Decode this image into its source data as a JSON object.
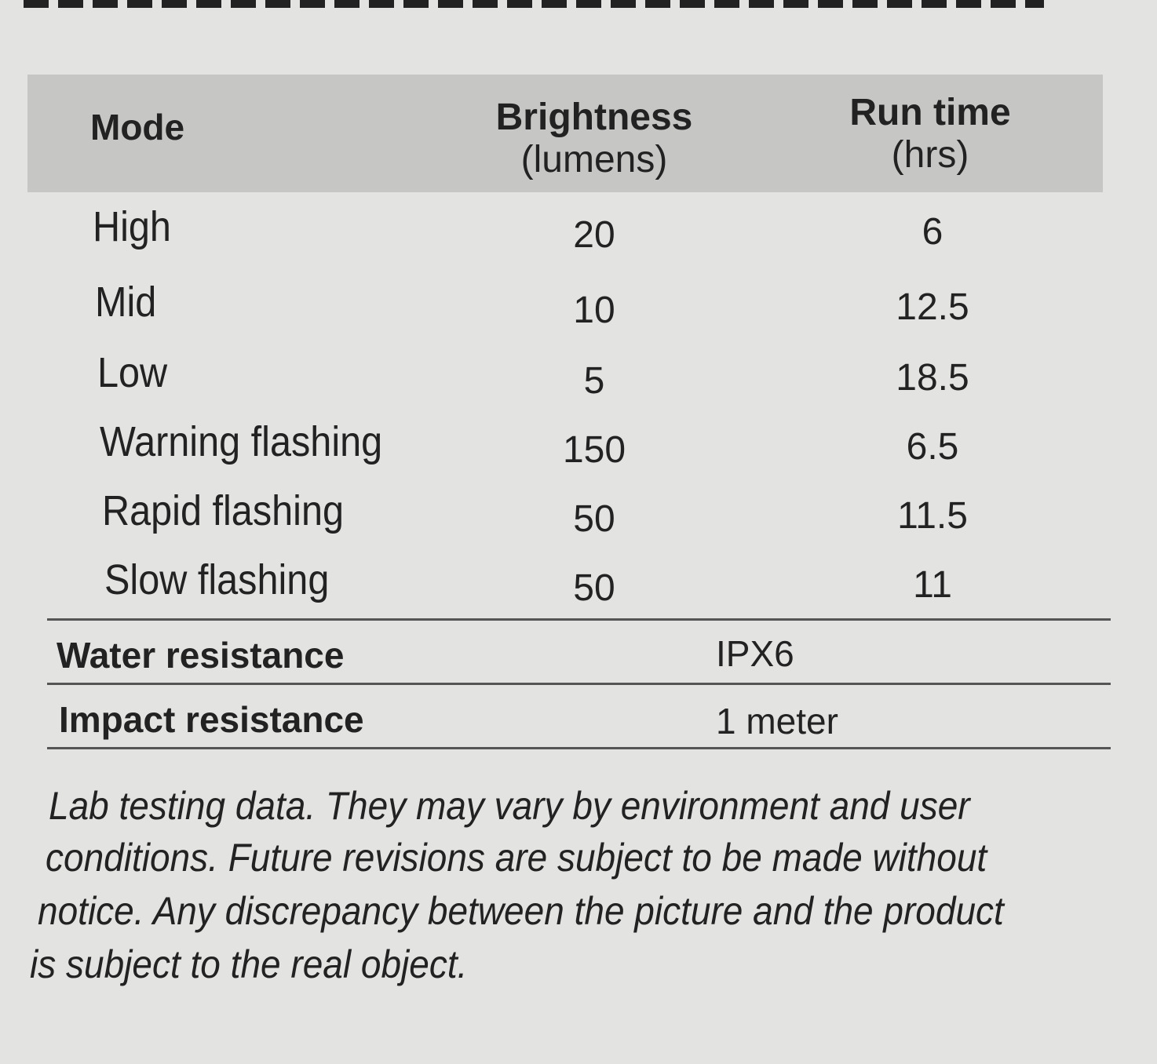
{
  "table": {
    "header": {
      "mode": "Mode",
      "brightness": [
        "Brightness",
        "(lumens)"
      ],
      "run_time": [
        "Run time",
        "(hrs)"
      ]
    },
    "rows": [
      [
        "High",
        20,
        6
      ],
      [
        "Mid",
        10,
        12.5
      ],
      [
        "Low",
        5,
        18.5
      ],
      [
        "Warning flashing",
        150,
        6.5
      ],
      [
        "Rapid flashing",
        50,
        11.5
      ],
      [
        "Slow flashing",
        50,
        11
      ]
    ]
  },
  "specs": [
    [
      "Water resistance",
      "IPX6"
    ],
    [
      "Impact resistance",
      "1 meter"
    ]
  ],
  "note": [
    "Lab testing data. They may vary by environment and user",
    "conditions. Future revisions are subject to be made without",
    "notice. Any discrepancy between the picture and the product",
    "is subject to the real object."
  ]
}
